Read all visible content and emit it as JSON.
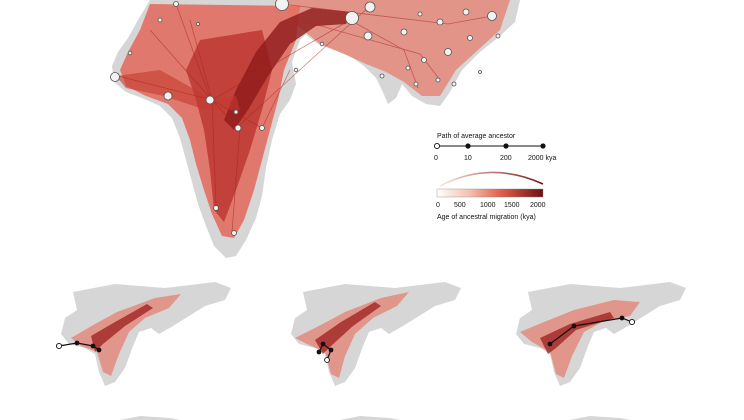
{
  "legend": {
    "path_title": "Path of average ancestor",
    "path_ticks": [
      "0",
      "10",
      "200",
      "2000 kya"
    ],
    "age_ticks": [
      "0",
      "500",
      "1000",
      "1500",
      "2000"
    ],
    "age_title": "Age of ancestral migration (kya)"
  },
  "colors": {
    "land": "#d6d6d6",
    "flow_dark": "#9b1c1c",
    "flow_mid": "#d9453a",
    "flow_light": "#f3b0a2",
    "node_fill": "#f2f2f2",
    "node_stroke": "#555555"
  }
}
